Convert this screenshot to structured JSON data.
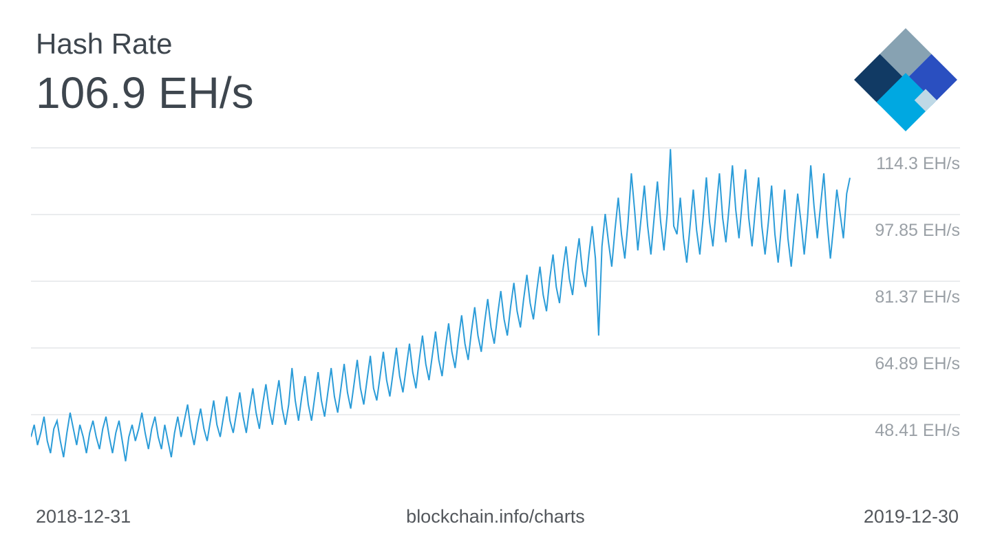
{
  "header": {
    "title": "Hash Rate",
    "value": "106.9 EH/s"
  },
  "logo": {
    "name": "blockchain-logo",
    "colors": {
      "slate": "#87a2b2",
      "royal": "#2a4fc0",
      "navy": "#113a64",
      "cyan": "#00a8e1",
      "pale": "#bfd9e6"
    }
  },
  "footer": {
    "start_date": "2018-12-31",
    "source": "blockchain.info/charts",
    "end_date": "2019-12-30"
  },
  "chart_data": {
    "type": "line",
    "title": "Hash Rate",
    "unit": "EH/s",
    "x_start": "2018-12-31",
    "x_end": "2019-12-30",
    "grid": true,
    "legend": false,
    "y_ticks": [
      114.3,
      97.85,
      81.37,
      64.89,
      48.41
    ],
    "y_tick_labels": [
      "114.3 EH/s",
      "97.85 EH/s",
      "81.37 EH/s",
      "64.89 EH/s",
      "48.41 EH/s"
    ],
    "colors": {
      "line": "#2b9cd8",
      "grid": "#e4e6e8",
      "tick_text": "#9aa0a6"
    },
    "values": [
      43,
      46,
      41,
      44,
      48,
      42,
      39,
      45,
      47,
      42,
      38,
      44,
      49,
      45,
      41,
      46,
      43,
      39,
      44,
      47,
      43,
      40,
      45,
      48,
      43,
      39,
      44,
      47,
      42,
      37,
      43,
      46,
      42,
      45,
      49,
      44,
      40,
      45,
      48,
      43,
      40,
      46,
      42,
      38,
      44,
      48,
      43,
      47,
      51,
      45,
      41,
      46,
      50,
      45,
      42,
      47,
      52,
      46,
      43,
      48,
      53,
      47,
      44,
      49,
      54,
      48,
      44,
      50,
      55,
      49,
      45,
      51,
      56,
      50,
      46,
      52,
      57,
      50,
      46,
      51,
      60,
      52,
      47,
      53,
      58,
      51,
      47,
      53,
      59,
      52,
      48,
      54,
      60,
      53,
      49,
      55,
      61,
      54,
      50,
      56,
      62,
      55,
      51,
      57,
      63,
      55,
      52,
      58,
      64,
      57,
      53,
      59,
      65,
      58,
      54,
      60,
      66,
      59,
      55,
      62,
      68,
      61,
      57,
      63,
      69,
      62,
      58,
      65,
      71,
      64,
      60,
      67,
      73,
      66,
      62,
      69,
      75,
      68,
      64,
      71,
      77,
      70,
      66,
      73,
      79,
      72,
      68,
      75,
      81,
      74,
      70,
      77,
      83,
      76,
      72,
      79,
      85,
      78,
      74,
      82,
      88,
      80,
      76,
      84,
      90,
      82,
      78,
      86,
      92,
      84,
      80,
      88,
      95,
      87,
      68,
      90,
      98,
      91,
      85,
      94,
      102,
      93,
      87,
      96,
      108,
      99,
      89,
      97,
      105,
      95,
      88,
      97,
      106,
      96,
      89,
      98,
      114,
      95,
      93,
      102,
      92,
      86,
      95,
      104,
      94,
      88,
      97,
      107,
      96,
      90,
      99,
      108,
      97,
      91,
      100,
      110,
      99,
      92,
      101,
      109,
      97,
      90,
      99,
      107,
      95,
      88,
      96,
      105,
      93,
      86,
      95,
      104,
      92,
      85,
      94,
      103,
      96,
      88,
      97,
      110,
      100,
      92,
      100,
      108,
      96,
      87,
      95,
      104,
      98,
      92,
      103,
      106.9
    ]
  }
}
